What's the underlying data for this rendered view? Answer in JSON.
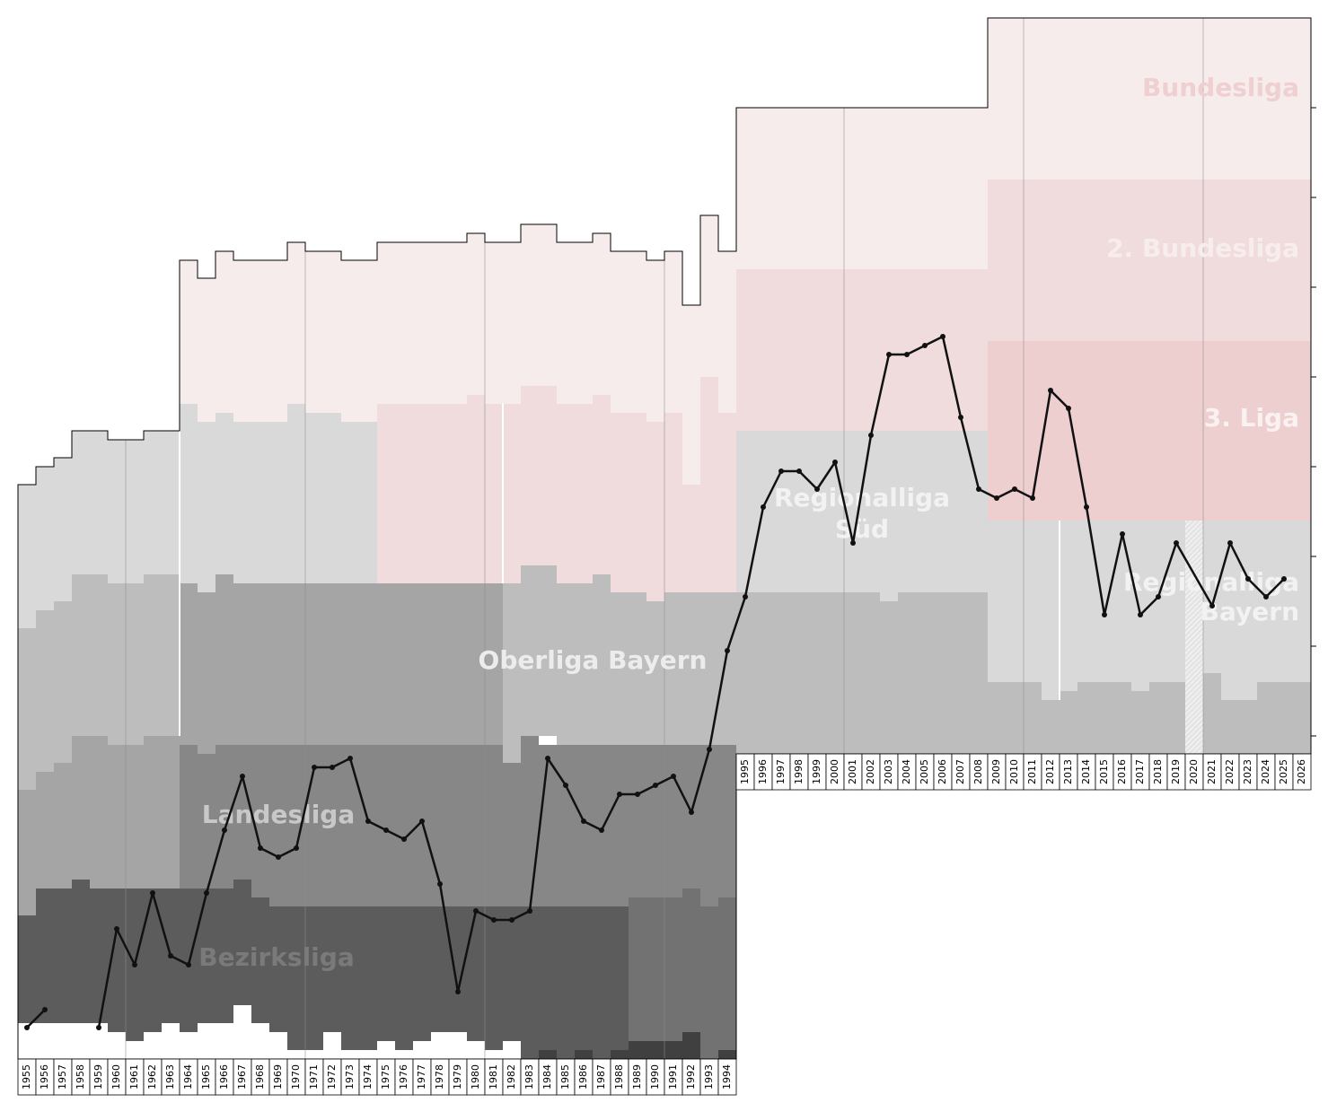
{
  "chart_data": {
    "type": "line",
    "categories": [
      "1955",
      "1956",
      "1957",
      "1958",
      "1959",
      "1960",
      "1961",
      "1962",
      "1963",
      "1964",
      "1965",
      "1966",
      "1967",
      "1968",
      "1969",
      "1970",
      "1971",
      "1972",
      "1973",
      "1974",
      "1975",
      "1976",
      "1977",
      "1978",
      "1979",
      "1980",
      "1981",
      "1982",
      "1983",
      "1984",
      "1985",
      "1986",
      "1987",
      "1988",
      "1989",
      "1990",
      "1991",
      "1992",
      "1993",
      "1994",
      "1995",
      "1996",
      "1997",
      "1998",
      "1999",
      "2000",
      "2001",
      "2002",
      "2003",
      "2004",
      "2005",
      "2006",
      "2007",
      "2008",
      "2009",
      "2010",
      "2011",
      "2012",
      "2013",
      "2014",
      "2015",
      "2016",
      "2017",
      "2018",
      "2019",
      "2020",
      "2021",
      "2022",
      "2023",
      "2024",
      "2025",
      "2026"
    ],
    "xlim": [
      1954.5,
      2026.5
    ],
    "ylim": [
      0,
      116
    ],
    "yticks": [
      10,
      20,
      30,
      40,
      50,
      60,
      70,
      80
    ],
    "xgrid": [
      1961,
      1971,
      1981,
      1991,
      2001,
      2011,
      2021
    ],
    "leagues": [
      {
        "label": [
          "Bundesliga"
        ],
        "color": "#f7ecec",
        "label_color": "#efcfcf",
        "segments": [
          [
            1964,
            1964,
            27,
            43
          ],
          [
            1965,
            1965,
            29,
            45
          ],
          [
            1966,
            1966,
            26,
            44
          ],
          [
            1967,
            1969,
            27,
            45
          ],
          [
            1970,
            1970,
            25,
            43
          ],
          [
            1971,
            1972,
            26,
            44
          ],
          [
            1973,
            1974,
            27,
            45
          ],
          [
            1975,
            1979,
            25,
            43
          ],
          [
            1980,
            1980,
            24,
            42
          ],
          [
            1981,
            1982,
            25,
            43
          ],
          [
            1983,
            1984,
            23,
            41
          ],
          [
            1985,
            1986,
            25,
            43
          ],
          [
            1987,
            1987,
            24,
            42
          ],
          [
            1988,
            1989,
            26,
            44
          ],
          [
            1990,
            1990,
            27,
            45
          ],
          [
            1991,
            1991,
            26,
            44
          ],
          [
            1992,
            1992,
            32,
            52
          ],
          [
            1993,
            1993,
            22,
            40
          ],
          [
            1994,
            1994,
            26,
            44
          ],
          [
            1995,
            2008,
            10,
            28
          ],
          [
            2009,
            2026,
            0,
            18
          ]
        ]
      },
      {
        "label": [
          "2. Bundesliga"
        ],
        "color": "#f0dcdc",
        "label_color": "#f8eded",
        "segments": [
          [
            1975,
            1979,
            43,
            63
          ],
          [
            1980,
            1980,
            42,
            63
          ],
          [
            1981,
            1982,
            43,
            63
          ],
          [
            1983,
            1984,
            41,
            61
          ],
          [
            1985,
            1986,
            43,
            63
          ],
          [
            1987,
            1987,
            42,
            62
          ],
          [
            1988,
            1989,
            44,
            64
          ],
          [
            1990,
            1990,
            45,
            65
          ],
          [
            1991,
            1991,
            44,
            64
          ],
          [
            1992,
            1992,
            52,
            64
          ],
          [
            1993,
            1993,
            40,
            64
          ],
          [
            1994,
            1994,
            44,
            64
          ],
          [
            1995,
            2008,
            28,
            46
          ],
          [
            2009,
            2026,
            18,
            36
          ]
        ]
      },
      {
        "label": [
          "3. Liga"
        ],
        "color": "#edcfcf",
        "label_color": "#faf2f2",
        "segments": [
          [
            2009,
            2026,
            36,
            56
          ]
        ]
      },
      {
        "label": [
          "Regionalliga",
          "Süd"
        ],
        "color": "#d9d9d9",
        "label_color": "#f2f2f2",
        "segments": [
          [
            1964,
            1964,
            43,
            63
          ],
          [
            1965,
            1965,
            45,
            64
          ],
          [
            1966,
            1966,
            44,
            62
          ],
          [
            1967,
            1969,
            45,
            63
          ],
          [
            1970,
            1970,
            43,
            63
          ],
          [
            1971,
            1972,
            44,
            63
          ],
          [
            1973,
            1974,
            45,
            63
          ],
          [
            1995,
            2002,
            46,
            64
          ],
          [
            2003,
            2003,
            46,
            65
          ],
          [
            2004,
            2008,
            46,
            64
          ]
        ]
      },
      {
        "label": [
          "Regionalliga",
          "Bayern"
        ],
        "color": "#d9d9d9",
        "label_color": "#f2f2f2",
        "segments": [
          [
            2009,
            2011,
            56,
            74
          ],
          [
            2012,
            2012,
            56,
            76
          ],
          [
            2013,
            2013,
            56,
            75
          ],
          [
            2014,
            2016,
            56,
            74
          ],
          [
            2017,
            2017,
            56,
            75
          ],
          [
            2018,
            2020,
            56,
            74
          ],
          [
            2021,
            2021,
            56,
            73
          ],
          [
            2022,
            2023,
            56,
            76
          ],
          [
            2024,
            2026,
            56,
            74
          ]
        ]
      },
      {
        "color": "#d9d9d9",
        "segments": [
          [
            1955,
            1955,
            52,
            68
          ],
          [
            1956,
            1956,
            50,
            66
          ],
          [
            1957,
            1957,
            49,
            65
          ],
          [
            1958,
            1959,
            46,
            62
          ],
          [
            1960,
            1961,
            47,
            63
          ],
          [
            1962,
            1963,
            46,
            62
          ]
        ]
      },
      {
        "label": [
          "Oberliga Bayern"
        ],
        "color": "#bdbdbd",
        "label_color": "#ececec",
        "segments": [
          [
            1982,
            1982,
            63,
            83
          ],
          [
            1983,
            1984,
            61,
            80
          ],
          [
            1985,
            1986,
            63,
            81
          ],
          [
            1987,
            1987,
            62,
            81
          ],
          [
            1988,
            1989,
            64,
            81
          ],
          [
            1990,
            1990,
            65,
            81
          ],
          [
            1991,
            1994,
            64,
            81
          ],
          [
            1995,
            2002,
            64,
            82
          ],
          [
            2003,
            2003,
            65,
            82
          ],
          [
            2004,
            2008,
            64,
            82
          ],
          [
            2009,
            2011,
            74,
            82
          ],
          [
            2012,
            2012,
            76,
            82
          ],
          [
            2013,
            2013,
            75,
            82
          ],
          [
            2014,
            2016,
            74,
            82
          ],
          [
            2017,
            2017,
            75,
            82
          ],
          [
            2018,
            2020,
            74,
            82
          ],
          [
            2021,
            2021,
            73,
            82
          ],
          [
            2022,
            2023,
            76,
            82
          ],
          [
            2024,
            2026,
            74,
            82
          ]
        ]
      },
      {
        "color": "#bdbdbd",
        "segments": [
          [
            1955,
            1955,
            68,
            86
          ],
          [
            1956,
            1956,
            66,
            84
          ],
          [
            1957,
            1957,
            65,
            83
          ],
          [
            1958,
            1959,
            62,
            80
          ],
          [
            1960,
            1961,
            63,
            81
          ],
          [
            1962,
            1963,
            62,
            80
          ]
        ]
      },
      {
        "color": "#a5a5a5",
        "segments": [
          [
            1955,
            1955,
            86,
            100
          ],
          [
            1956,
            1956,
            84,
            97
          ],
          [
            1957,
            1957,
            83,
            97
          ],
          [
            1958,
            1958,
            80,
            96
          ],
          [
            1959,
            1959,
            80,
            97
          ],
          [
            1960,
            1961,
            81,
            97
          ],
          [
            1962,
            1963,
            80,
            97
          ],
          [
            1964,
            1964,
            63,
            81
          ],
          [
            1965,
            1965,
            64,
            82
          ],
          [
            1966,
            1966,
            62,
            81
          ],
          [
            1967,
            1981,
            63,
            81
          ]
        ]
      },
      {
        "label": [
          "Landesliga"
        ],
        "color": "#878787",
        "label_color": "#c8c8c8",
        "segments": [
          [
            1964,
            1964,
            81,
            97
          ],
          [
            1965,
            1965,
            82,
            97
          ],
          [
            1966,
            1966,
            81,
            97
          ],
          [
            1967,
            1967,
            81,
            96
          ],
          [
            1968,
            1968,
            81,
            98
          ],
          [
            1969,
            1981,
            81,
            99
          ],
          [
            1982,
            1982,
            83,
            99
          ],
          [
            1983,
            1983,
            80,
            99
          ],
          [
            1984,
            1988,
            81,
            99
          ],
          [
            1989,
            1991,
            81,
            98
          ],
          [
            1992,
            1992,
            81,
            97
          ],
          [
            1993,
            1993,
            81,
            99
          ],
          [
            1994,
            1994,
            81,
            98
          ]
        ]
      },
      {
        "label": [
          "Bezirksliga"
        ],
        "color": "#5c5c5c",
        "label_color": "#7a7a7a",
        "segments": [
          [
            1955,
            1955,
            100,
            112
          ],
          [
            1956,
            1957,
            97,
            112
          ],
          [
            1958,
            1958,
            96,
            112
          ],
          [
            1959,
            1959,
            97,
            112
          ],
          [
            1960,
            1960,
            97,
            113
          ],
          [
            1961,
            1961,
            97,
            114
          ],
          [
            1962,
            1962,
            97,
            113
          ],
          [
            1963,
            1963,
            97,
            112
          ],
          [
            1964,
            1964,
            97,
            113
          ],
          [
            1965,
            1966,
            97,
            112
          ],
          [
            1967,
            1967,
            96,
            110
          ],
          [
            1968,
            1968,
            98,
            112
          ],
          [
            1969,
            1969,
            99,
            113
          ],
          [
            1970,
            1971,
            99,
            115
          ],
          [
            1972,
            1972,
            99,
            113
          ],
          [
            1973,
            1974,
            99,
            115
          ],
          [
            1975,
            1975,
            99,
            114
          ],
          [
            1976,
            1976,
            99,
            115
          ],
          [
            1977,
            1977,
            99,
            114
          ],
          [
            1978,
            1979,
            99,
            113
          ],
          [
            1980,
            1980,
            99,
            114
          ],
          [
            1981,
            1981,
            99,
            115
          ],
          [
            1982,
            1982,
            99,
            114
          ],
          [
            1983,
            1983,
            99,
            116
          ],
          [
            1984,
            1984,
            99,
            115
          ],
          [
            1985,
            1985,
            99,
            116
          ],
          [
            1986,
            1986,
            99,
            115
          ],
          [
            1987,
            1987,
            99,
            116
          ],
          [
            1988,
            1988,
            99,
            115
          ]
        ]
      },
      {
        "color": "#727272",
        "segments": [
          [
            1989,
            1991,
            98,
            114
          ],
          [
            1992,
            1992,
            97,
            113
          ],
          [
            1993,
            1993,
            99,
            116
          ],
          [
            1994,
            1994,
            98,
            115
          ]
        ]
      },
      {
        "color": "#404040",
        "segments": [
          [
            1984,
            1984,
            115,
            116
          ],
          [
            1986,
            1986,
            115,
            116
          ],
          [
            1988,
            1988,
            115,
            116
          ],
          [
            1989,
            1991,
            114,
            116
          ],
          [
            1992,
            1992,
            113,
            116
          ],
          [
            1994,
            1994,
            115,
            116
          ]
        ]
      }
    ],
    "series": [
      {
        "color": "#111111",
        "x": [
          1955,
          1956,
          1957,
          1958,
          1959,
          1960,
          1961,
          1962,
          1963,
          1964,
          1965,
          1966,
          1967,
          1968,
          1969,
          1970,
          1971,
          1972,
          1973,
          1974,
          1975,
          1976,
          1977,
          1978,
          1979,
          1980,
          1981,
          1982,
          1983,
          1984,
          1985,
          1986,
          1987,
          1988,
          1989,
          1990,
          1991,
          1992,
          1993,
          1994,
          1995,
          1996,
          1997,
          1998,
          1999,
          2000,
          2001,
          2002,
          2003,
          2004,
          2005,
          2006,
          2007,
          2008,
          2009,
          2010,
          2011,
          2012,
          2013,
          2014,
          2015,
          2016,
          2017,
          2018,
          2019,
          2021,
          2022,
          2023,
          2024,
          2025
        ],
        "values": [
          112.5,
          110.5,
          null,
          null,
          112.5,
          101.5,
          105.5,
          97.5,
          104.5,
          105.5,
          97.5,
          90.5,
          84.5,
          92.5,
          93.5,
          92.5,
          83.5,
          83.5,
          82.5,
          89.5,
          90.5,
          91.5,
          89.5,
          96.5,
          108.5,
          99.5,
          100.5,
          100.5,
          99.5,
          82.5,
          85.5,
          89.5,
          90.5,
          86.5,
          86.5,
          85.5,
          84.5,
          88.5,
          81.5,
          70.5,
          64.5,
          54.5,
          50.5,
          50.5,
          52.5,
          49.5,
          58.5,
          46.5,
          37.5,
          37.5,
          36.5,
          35.5,
          44.5,
          52.5,
          53.5,
          52.5,
          53.5,
          41.5,
          43.5,
          54.5,
          66.5,
          57.5,
          66.5,
          64.5,
          58.5,
          65.5,
          58.5,
          62.5,
          64.5,
          62.5
        ]
      }
    ]
  }
}
